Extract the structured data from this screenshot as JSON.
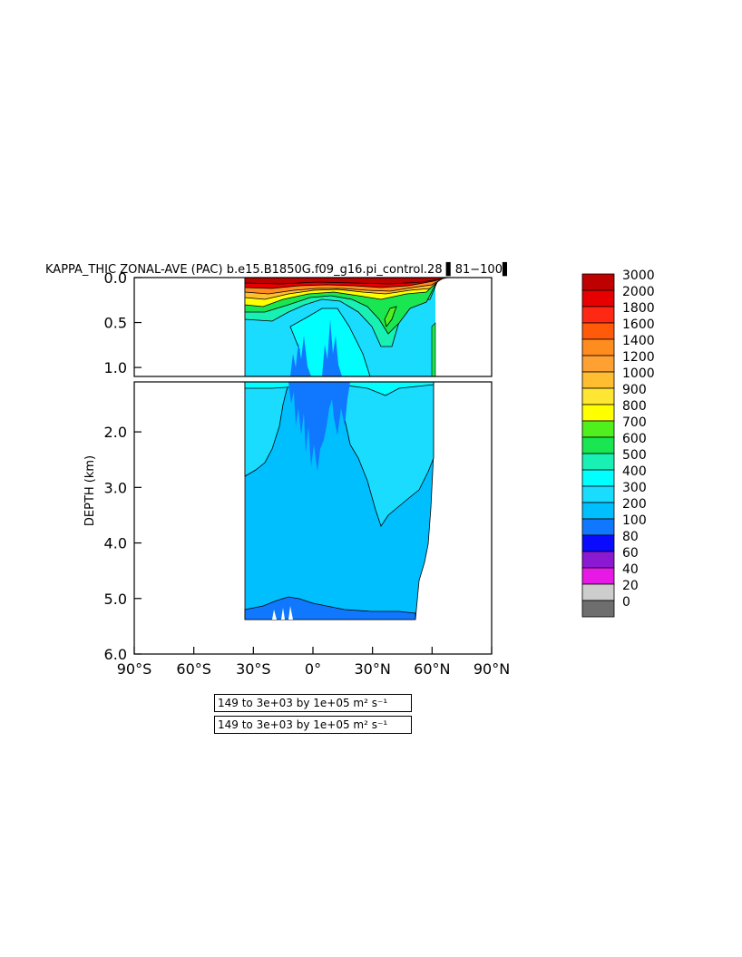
{
  "chart_data": {
    "type": "heatmap",
    "title": "KAPPA_THIC ZONAL-AVE (PAC) b.e15.B1850G.f09_g16.pi_control.28 ▌81−100▌",
    "ylabel": "DEPTH (km)",
    "xlabel": "",
    "x_ticks": [
      "90°S",
      "60°S",
      "30°S",
      "0°",
      "30°N",
      "60°N",
      "90°N"
    ],
    "x_tick_values": [
      -90,
      -60,
      -30,
      0,
      30,
      60,
      90
    ],
    "y_ticks_upper": [
      "0.0",
      "0.5",
      "1.0"
    ],
    "y_tick_values_upper": [
      0.0,
      0.5,
      1.0
    ],
    "y_ticks_lower": [
      "2.0",
      "3.0",
      "4.0",
      "5.0",
      "6.0"
    ],
    "y_tick_values_lower": [
      2.0,
      3.0,
      4.0,
      5.0,
      6.0
    ],
    "xlim": [
      -90,
      90
    ],
    "ylim_upper": [
      0.0,
      1.1
    ],
    "ylim_lower": [
      1.1,
      6.0
    ],
    "units": "m² s⁻¹",
    "contour_levels": [
      0,
      20,
      40,
      60,
      80,
      100,
      200,
      300,
      400,
      500,
      600,
      700,
      800,
      900,
      1000,
      1200,
      1400,
      1600,
      1800,
      2000,
      3000
    ],
    "level_labels": [
      "0",
      "20",
      "40",
      "60",
      "80",
      "100",
      "200",
      "300",
      "400",
      "500",
      "600",
      "700",
      "800",
      "900",
      "1000",
      "1200",
      "1400",
      "1600",
      "1800",
      "2000",
      "3000"
    ],
    "level_colors": [
      "#6e6e6e",
      "#cdcdcd",
      "#e619e6",
      "#8c19d2",
      "#0a0aff",
      "#0f78ff",
      "#00bfff",
      "#19dcff",
      "#00ffff",
      "#19f0b4",
      "#19e650",
      "#50f01e",
      "#ffff00",
      "#ffe632",
      "#ffbe32",
      "#ffa032",
      "#ff8c1e",
      "#ff5a0a",
      "#ff2814",
      "#e60000",
      "#be0000"
    ],
    "field_range": {
      "min": 149,
      "max": 3000
    },
    "data_extent": {
      "lat_min": -35,
      "lat_max": 68,
      "depth_max": 5.35
    }
  },
  "info": {
    "line1": "149 to 3e+03 by 1e+05 m² s⁻¹",
    "line2": "149 to 3e+03 by 1e+05 m² s⁻¹"
  }
}
